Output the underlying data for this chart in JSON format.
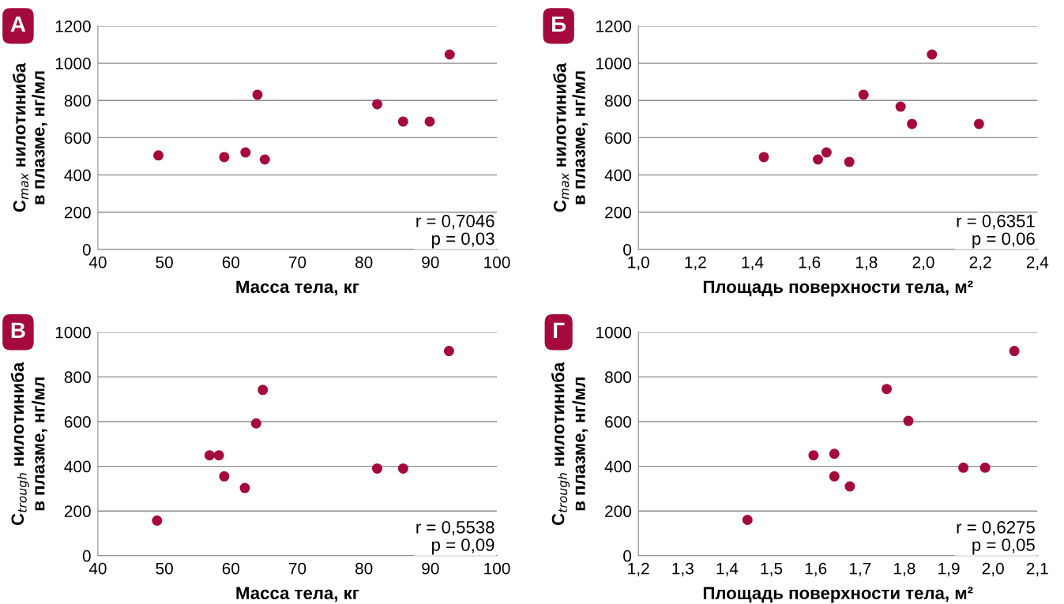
{
  "chart_data": [
    {
      "type": "scatter",
      "title": "А",
      "xlabel": "Масса тела, кг",
      "ylabel": "C$_{max}$ нилотиниба\nв плазме, нг/мл",
      "x": [
        49.1,
        59.0,
        62.2,
        64.0,
        65.1,
        82.0,
        85.9,
        89.9,
        92.9
      ],
      "series": [
        {
          "color": "#a50a3c",
          "values": [
            505,
            496,
            521,
            831,
            483,
            780,
            687,
            687,
            1047
          ]
        }
      ],
      "xlim": [
        40,
        100
      ],
      "xticks": [
        40,
        50,
        60,
        70,
        80,
        90,
        100
      ],
      "ylim": [
        0,
        1200
      ],
      "yticks": [
        0,
        200,
        400,
        600,
        800,
        1000,
        1200
      ],
      "grid": "y",
      "marker": "circle",
      "annotations": [
        "r = 0,7046\np = 0,03"
      ]
    },
    {
      "type": "scatter",
      "title": "Б",
      "xlabel": "Площадь поверхности тела, м²",
      "ylabel": "C$_{max}$ нилотиниба\nв плазме, нг/мл",
      "x": [
        1.44,
        1.63,
        1.66,
        1.74,
        1.79,
        1.92,
        1.96,
        2.03,
        2.195
      ],
      "series": [
        {
          "color": "#a50a3c",
          "values": [
            496,
            483,
            521,
            470,
            831,
            767,
            674,
            1047,
            674
          ]
        }
      ],
      "xlim": [
        1.0,
        2.4
      ],
      "xticks": [
        {
          "value": 1.0,
          "label": "1,0"
        },
        {
          "value": 1.2,
          "label": "1,2"
        },
        {
          "value": 1.4,
          "label": "1,4"
        },
        {
          "value": 1.6,
          "label": "1,6"
        },
        {
          "value": 1.8,
          "label": "1,8"
        },
        {
          "value": 2.0,
          "label": "2,0"
        },
        {
          "value": 2.2,
          "label": "2,2"
        },
        {
          "value": 2.4,
          "label": "2,4"
        }
      ],
      "ylim": [
        0,
        1200
      ],
      "yticks": [
        0,
        200,
        400,
        600,
        800,
        1000,
        1200
      ],
      "grid": "y",
      "marker": "circle",
      "annotations": [
        "r = 0,6351\np = 0,06"
      ]
    },
    {
      "type": "scatter",
      "title": "В",
      "xlabel": "Масса тела, кг",
      "ylabel": "C$_{trough}$ нилотиниба\nв плазме, нг/мл",
      "x": [
        48.9,
        56.8,
        58.2,
        59.0,
        62.1,
        63.8,
        64.8,
        82.0,
        85.9,
        92.8
      ],
      "series": [
        {
          "color": "#a50a3c",
          "values": [
            157,
            449,
            449,
            355,
            303,
            592,
            742,
            390,
            390,
            916
          ]
        }
      ],
      "xlim": [
        40,
        100
      ],
      "xticks": [
        40,
        50,
        60,
        70,
        80,
        90,
        100
      ],
      "ylim": [
        0,
        1000
      ],
      "yticks": [
        0,
        200,
        400,
        600,
        800,
        1000
      ],
      "grid": "y",
      "marker": "circle",
      "annotations": [
        "r = 0,5538\np = 0,09"
      ]
    },
    {
      "type": "scatter",
      "title": "Г",
      "xlabel": "Площадь поверхности тела, м²",
      "ylabel": "C$_{trough}$ нилотиниба\nв плазме, нг/мл",
      "x": [
        1.446,
        1.595,
        1.642,
        1.642,
        1.677,
        1.76,
        1.809,
        1.933,
        1.982,
        2.048
      ],
      "series": [
        {
          "color": "#a50a3c",
          "values": [
            160,
            449,
            456,
            355,
            310,
            746,
            603,
            394,
            394,
            916
          ]
        }
      ],
      "xlim": [
        1.2,
        2.1
      ],
      "xticks": [
        {
          "value": 1.2,
          "label": "1,2"
        },
        {
          "value": 1.3,
          "label": "1,3"
        },
        {
          "value": 1.4,
          "label": "1,4"
        },
        {
          "value": 1.5,
          "label": "1,5"
        },
        {
          "value": 1.6,
          "label": "1,6"
        },
        {
          "value": 1.7,
          "label": "1,7"
        },
        {
          "value": 1.8,
          "label": "1,8"
        },
        {
          "value": 1.9,
          "label": "1,9"
        },
        {
          "value": 2.0,
          "label": "2,0"
        },
        {
          "value": 2.1,
          "label": "2,1"
        }
      ],
      "ylim": [
        0,
        1000
      ],
      "yticks": [
        0,
        200,
        400,
        600,
        800,
        1000
      ],
      "grid": "y",
      "marker": "circle",
      "annotations": [
        "r = 0,6275\np = 0,05"
      ]
    }
  ]
}
